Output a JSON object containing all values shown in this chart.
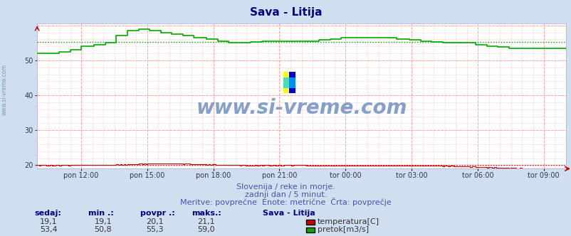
{
  "title": "Sava - Litija",
  "title_color": "#000080",
  "bg_color": "#d0dff0",
  "plot_bg_color": "#ffffff",
  "grid_color_major": "#ffaaaa",
  "grid_color_minor": "#ffd5d5",
  "xlabel_ticks": [
    "pon 12:00",
    "pon 15:00",
    "pon 18:00",
    "pon 21:00",
    "tor 00:00",
    "tor 03:00",
    "tor 06:00",
    "tor 09:00"
  ],
  "tick_positions_frac": [
    0.083,
    0.208,
    0.333,
    0.458,
    0.583,
    0.708,
    0.833,
    0.958
  ],
  "ylim": [
    19.0,
    60.5
  ],
  "yticks": [
    20,
    30,
    40,
    50
  ],
  "temp_color": "#cc0000",
  "flow_color": "#00aa00",
  "avg_temp": 20.1,
  "avg_flow": 55.3,
  "temp_min": 19.1,
  "temp_max": 21.1,
  "flow_min": 50.8,
  "flow_max": 59.0,
  "temp_sedaj": "19,1",
  "flow_sedaj": "53,4",
  "temp_min_s": "19,1",
  "flow_min_s": "50,8",
  "temp_avg_s": "20,1",
  "flow_avg_s": "55,3",
  "temp_max_s": "21,1",
  "flow_max_s": "59,0",
  "watermark": "www.si-vreme.com",
  "subtitle1": "Slovenija / reke in morje.",
  "subtitle2": "zadnji dan / 5 minut.",
  "subtitle3": "Meritve: povprečne  Enote: metrične  Črta: povprečje",
  "legend_title": "Sava - Litija",
  "legend_temp": "temperatura[C]",
  "legend_flow": "pretok[m3/s]",
  "sidebar_text": "www.si-vreme.com",
  "n_points": 288,
  "flow_steps": [
    52.0,
    52.0,
    52.5,
    53.0,
    54.0,
    54.5,
    55.0,
    57.0,
    58.5,
    59.0,
    58.5,
    58.0,
    57.5,
    57.0,
    56.5,
    56.0,
    55.5,
    55.0,
    55.0,
    55.3,
    55.5,
    55.5,
    55.5,
    55.5,
    55.5,
    55.8,
    56.0,
    56.5,
    56.5,
    56.5,
    56.5,
    56.5,
    56.0,
    55.8,
    55.5,
    55.3,
    55.0,
    55.0,
    55.0,
    54.5,
    54.0,
    53.8,
    53.5,
    53.4,
    53.5,
    53.5,
    53.5,
    53.4
  ],
  "temp_steps": [
    20.0,
    20.0,
    20.0,
    20.1,
    20.1,
    20.1,
    20.1,
    20.2,
    20.3,
    20.4,
    20.5,
    20.5,
    20.5,
    20.4,
    20.3,
    20.2,
    20.1,
    20.1,
    20.0,
    20.0,
    20.0,
    20.0,
    20.0,
    20.0,
    19.9,
    19.9,
    19.9,
    19.9,
    19.9,
    19.9,
    19.9,
    19.9,
    19.9,
    19.9,
    19.9,
    19.9,
    19.8,
    19.7,
    19.6,
    19.5,
    19.4,
    19.3,
    19.2,
    19.1,
    19.1,
    19.1,
    19.1,
    19.1
  ]
}
